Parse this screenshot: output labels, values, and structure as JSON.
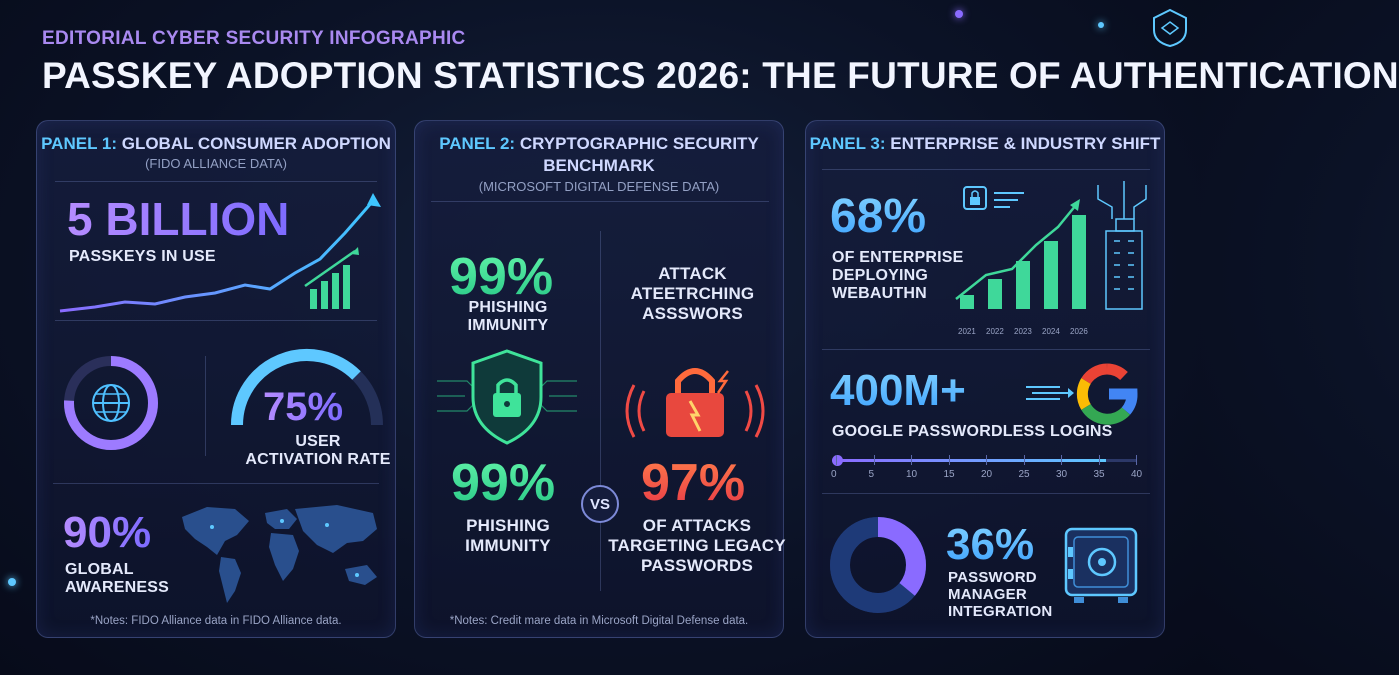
{
  "header": {
    "eyebrow": "EDITORIAL CYBER SECURITY INFOGRAPHIC",
    "title": "PASSKEY ADOPTION STATISTICS 2026: THE FUTURE OF AUTHENTICATION"
  },
  "panel1": {
    "title_num": "PANEL 1:",
    "title_text": "GLOBAL CONSUMER ADOPTION",
    "subtitle": "(FIDO ALLIANCE DATA)",
    "stat1": {
      "value": "5 BILLION",
      "label": "PASSKEYS IN USE"
    },
    "stat2": {
      "value": "75%",
      "label_line1": "USER",
      "label_line2": "ACTIVATION RATE",
      "gauge_fraction": 0.75
    },
    "stat3": {
      "value": "90%",
      "label_line1": "GLOBAL",
      "label_line2": "AWARENESS"
    },
    "note": "*Notes: FIDO Alliance data in FIDO Alliance data."
  },
  "panel2": {
    "title_num": "PANEL 2:",
    "title_line1": "CRYPTOGRAPHIC SECURITY",
    "title_line2": "BENCHMARK",
    "subtitle": "(MICROSOFT DIGITAL DEFENSE DATA)",
    "left_top": {
      "value": "99%",
      "label_line1": "PHISHING",
      "label_line2": "IMMUNITY"
    },
    "right_top": {
      "line1": "ATTACK",
      "line2": "ATEETRCHING",
      "line3": "ASSSWORS"
    },
    "vs_label": "VS",
    "left_bottom": {
      "value": "99%",
      "label_line1": "PHISHING",
      "label_line2": "IMMUNITY"
    },
    "right_bottom": {
      "value": "97%",
      "label_line1": "OF ATTACKS",
      "label_line2": "TARGETING LEGACY",
      "label_line3": "PASSWORDS"
    },
    "note": "*Notes: Credit mare data in Microsoft Digital Defense data."
  },
  "panel3": {
    "title_num": "PANEL 3:",
    "title_text": "ENTERPRISE & INDUSTRY SHIFT",
    "stat1": {
      "value": "68%",
      "label_line1": "OF ENTERPRISE",
      "label_line2": "DEPLOYING",
      "label_line3": "WEBAUTHN"
    },
    "years": [
      "2021",
      "2022",
      "2023",
      "2024",
      "2026"
    ],
    "stat2": {
      "value": "400M+",
      "label": "GOOGLE PASSWORDLESS LOGINS",
      "google_letter": "G"
    },
    "scale_ticks": [
      "0",
      "5",
      "10",
      "15",
      "20",
      "25",
      "30",
      "35",
      "40"
    ],
    "stat3": {
      "value": "36%",
      "label_line1": "PASSWORD",
      "label_line2": "MANAGER",
      "label_line3": "INTEGRATION",
      "donut_fraction": 0.36
    }
  },
  "colors": {
    "purple": "#a98cff",
    "green": "#3fe39a",
    "red": "#f04a45",
    "blue": "#4fb4ff"
  }
}
